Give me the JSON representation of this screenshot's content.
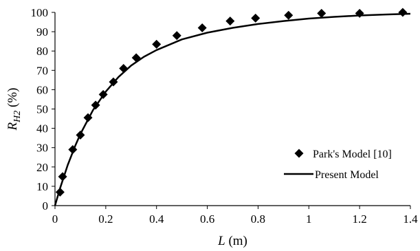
{
  "chart_data": {
    "type": "scatter",
    "title": "",
    "xlabel": {
      "var": "L",
      "unit": " (m)"
    },
    "ylabel": {
      "var": "R",
      "sub": "H2",
      "unit": " (%)"
    },
    "xlim": [
      0,
      1.4
    ],
    "ylim": [
      0,
      100
    ],
    "x_ticks": [
      0,
      0.2,
      0.4,
      0.6,
      0.8,
      1,
      1.2,
      1.4
    ],
    "x_tick_labels": [
      "0",
      "0.2",
      "0.4",
      "0.6",
      "0.8",
      "1",
      "1.2",
      "1.4"
    ],
    "y_ticks": [
      0,
      10,
      20,
      30,
      40,
      50,
      60,
      70,
      80,
      90,
      100
    ],
    "y_tick_labels": [
      "0",
      "10",
      "20",
      "30",
      "40",
      "50",
      "60",
      "70",
      "80",
      "90",
      "100"
    ],
    "grid": false,
    "legend_position": "bottom-right",
    "series": [
      {
        "name": "Park's Model [10]",
        "style": "diamond-markers",
        "color": "#000000",
        "x": [
          0.02,
          0.03,
          0.07,
          0.1,
          0.13,
          0.16,
          0.19,
          0.23,
          0.27,
          0.32,
          0.4,
          0.48,
          0.58,
          0.69,
          0.79,
          0.92,
          1.05,
          1.2,
          1.37
        ],
        "y": [
          7,
          15,
          29,
          36.5,
          45.5,
          52,
          57.5,
          64,
          71,
          76.5,
          83.5,
          88,
          92,
          95.5,
          97,
          98.5,
          99.5,
          99.5,
          100
        ]
      },
      {
        "name": "Present Model",
        "style": "line",
        "color": "#000000",
        "x": [
          0,
          0.02,
          0.05,
          0.08,
          0.1,
          0.15,
          0.2,
          0.25,
          0.3,
          0.35,
          0.4,
          0.5,
          0.6,
          0.7,
          0.8,
          0.9,
          1.0,
          1.1,
          1.2,
          1.3,
          1.4
        ],
        "y": [
          0,
          9,
          21,
          31,
          37,
          49.5,
          59,
          66.5,
          72.5,
          77,
          80.5,
          86,
          89.5,
          92,
          94,
          95.5,
          96.8,
          97.7,
          98.4,
          98.9,
          99.3
        ]
      }
    ]
  }
}
